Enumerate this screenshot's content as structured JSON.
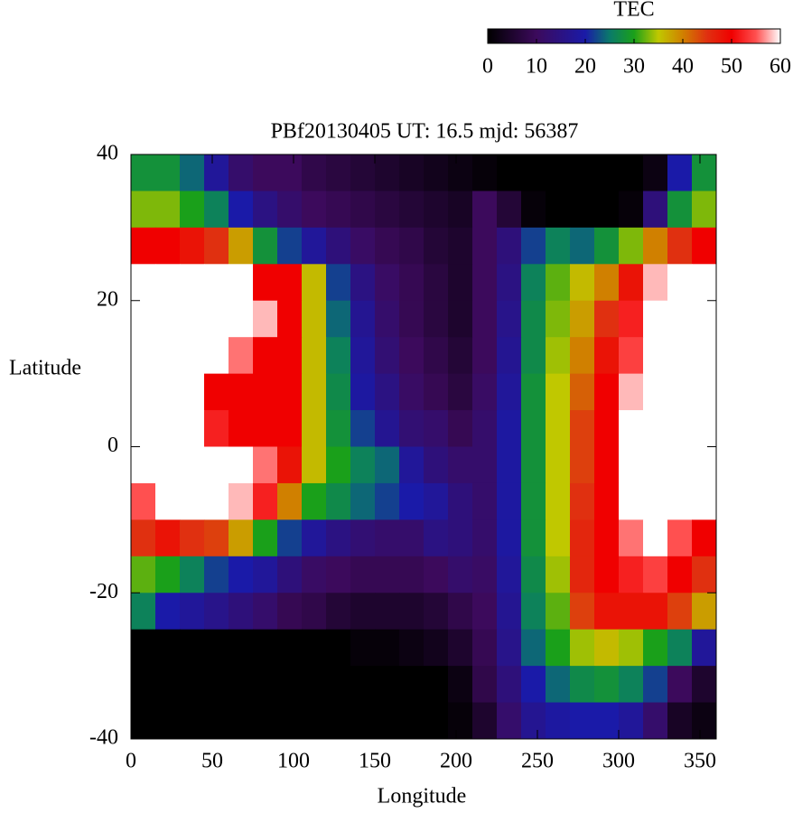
{
  "chart_data": {
    "type": "heatmap",
    "title": "PBf20130405  UT: 16.5  mjd: 56387",
    "x_label": "Longitude",
    "y_label": "Latitude",
    "colorbar_label": "TEC",
    "x": [
      7.5,
      22.5,
      37.5,
      52.5,
      67.5,
      82.5,
      97.5,
      112.5,
      127.5,
      142.5,
      157.5,
      172.5,
      187.5,
      202.5,
      217.5,
      232.5,
      247.5,
      262.5,
      277.5,
      292.5,
      307.5,
      322.5,
      337.5,
      352.5
    ],
    "y": [
      37.5,
      32.5,
      27.5,
      22.5,
      17.5,
      12.5,
      7.5,
      2.5,
      -2.5,
      -7.5,
      -12.5,
      -17.5,
      -22.5,
      -27.5,
      -32.5,
      -37.5
    ],
    "z": [
      [
        28,
        28,
        24,
        18,
        12,
        10,
        10,
        8,
        7,
        6,
        5,
        4,
        3,
        2,
        1,
        0,
        0,
        0,
        0,
        0,
        0,
        2,
        20,
        28
      ],
      [
        33,
        33,
        30,
        26,
        20,
        15,
        12,
        10,
        9,
        8,
        7,
        6,
        5,
        4,
        10,
        6,
        1,
        0,
        0,
        0,
        1,
        14,
        28,
        33
      ],
      [
        50,
        50,
        48,
        45,
        38,
        28,
        22,
        18,
        14,
        11,
        9,
        8,
        6,
        5,
        10,
        14,
        22,
        26,
        24,
        28,
        33,
        40,
        45,
        50
      ],
      [
        60,
        60,
        60,
        60,
        60,
        50,
        50,
        36,
        22,
        15,
        11,
        9,
        7,
        5,
        10,
        15,
        26,
        32,
        36,
        40,
        48,
        58,
        60,
        60
      ],
      [
        60,
        60,
        60,
        60,
        60,
        58,
        50,
        36,
        24,
        17,
        12,
        9,
        7,
        5,
        10,
        16,
        27,
        33,
        38,
        45,
        52,
        60,
        60,
        60
      ],
      [
        60,
        60,
        60,
        60,
        56,
        50,
        50,
        36,
        26,
        18,
        13,
        10,
        8,
        6,
        10,
        17,
        27,
        34,
        40,
        48,
        54,
        60,
        60,
        60
      ],
      [
        60,
        60,
        60,
        50,
        50,
        50,
        50,
        36,
        27,
        19,
        15,
        11,
        9,
        7,
        11,
        18,
        28,
        35,
        42,
        50,
        58,
        60,
        60,
        60
      ],
      [
        60,
        60,
        60,
        52,
        50,
        50,
        50,
        36,
        28,
        22,
        17,
        13,
        12,
        9,
        12,
        19,
        28,
        35,
        44,
        50,
        60,
        60,
        60,
        60
      ],
      [
        60,
        60,
        60,
        60,
        60,
        56,
        48,
        36,
        30,
        26,
        24,
        18,
        14,
        12,
        12,
        19,
        28,
        35,
        44,
        50,
        60,
        60,
        60,
        60
      ],
      [
        55,
        60,
        60,
        60,
        58,
        52,
        40,
        30,
        27,
        24,
        22,
        20,
        18,
        14,
        12,
        19,
        28,
        35,
        45,
        50,
        60,
        60,
        60,
        60
      ],
      [
        45,
        48,
        45,
        44,
        38,
        30,
        22,
        18,
        15,
        13,
        12,
        12,
        15,
        14,
        12,
        19,
        28,
        35,
        46,
        50,
        56,
        60,
        55,
        50
      ],
      [
        32,
        30,
        26,
        22,
        20,
        18,
        14,
        11,
        10,
        9,
        9,
        9,
        10,
        12,
        11,
        18,
        27,
        34,
        46,
        50,
        52,
        54,
        50,
        45
      ],
      [
        26,
        20,
        18,
        16,
        14,
        12,
        9,
        8,
        6,
        5,
        5,
        5,
        6,
        8,
        10,
        17,
        26,
        32,
        44,
        48,
        48,
        48,
        44,
        38
      ],
      [
        0,
        0,
        0,
        0,
        0,
        0,
        0,
        0,
        0,
        1,
        1,
        2,
        3,
        5,
        9,
        16,
        24,
        30,
        34,
        36,
        34,
        30,
        26,
        18
      ],
      [
        0,
        0,
        0,
        0,
        0,
        0,
        0,
        0,
        0,
        0,
        0,
        0,
        0,
        2,
        8,
        14,
        20,
        24,
        27,
        28,
        26,
        22,
        10,
        5
      ],
      [
        0,
        0,
        0,
        0,
        0,
        0,
        0,
        0,
        0,
        0,
        0,
        0,
        0,
        1,
        5,
        12,
        17,
        19,
        20,
        20,
        18,
        12,
        4,
        2
      ]
    ],
    "xlim": [
      0,
      360
    ],
    "xticks": [
      0,
      50,
      100,
      150,
      200,
      250,
      300,
      350
    ],
    "ylim": [
      -40,
      40
    ],
    "yticks": [
      -40,
      -20,
      0,
      20,
      40
    ],
    "zlim": [
      0,
      60
    ],
    "zticks": [
      0,
      10,
      20,
      30,
      40,
      50,
      60
    ],
    "colorscale": [
      [
        0,
        "#000000"
      ],
      [
        10,
        "#3c0a5c"
      ],
      [
        20,
        "#1a1aa8"
      ],
      [
        25,
        "#0a7a6a"
      ],
      [
        30,
        "#1aa01a"
      ],
      [
        35,
        "#c0c800"
      ],
      [
        40,
        "#d08000"
      ],
      [
        45,
        "#e03010"
      ],
      [
        50,
        "#f00000"
      ],
      [
        55,
        "#ff5050"
      ],
      [
        60,
        "#ffffff"
      ]
    ]
  }
}
